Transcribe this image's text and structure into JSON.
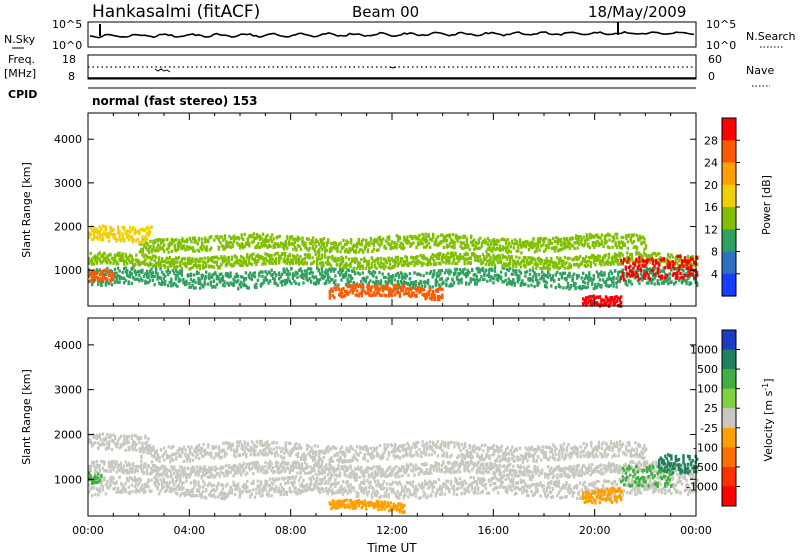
{
  "header": {
    "station": "Hankasalmi (fitACF)",
    "beam": "Beam 00",
    "date": "18/May/2009"
  },
  "noise_panel": {
    "left_label": "N.Sky",
    "right_label": "N.Search",
    "left_ticks": [
      "10^5",
      "10^0"
    ],
    "right_ticks": [
      "10^5",
      "10^0"
    ]
  },
  "freq_panel": {
    "left_label_1": "Freq.",
    "left_label_2": "[MHz]",
    "left_ticks": [
      "18",
      "8"
    ],
    "right_label": "Nave",
    "right_ticks": [
      "60",
      "0"
    ]
  },
  "cpid": {
    "label": "CPID",
    "value": "normal (fast stereo) 153"
  },
  "chart_data": [
    {
      "type": "heatmap",
      "quantity": "Power",
      "ylabel": "Slant Range [km]",
      "xlabel": "",
      "ylim": [
        180,
        4600
      ],
      "xlim": [
        0,
        24
      ],
      "yticks": [
        "4000",
        "3000",
        "2000",
        "1000"
      ],
      "colorbar_label": "Power [dB]",
      "colorbar_ticks": [
        "28",
        "24",
        "20",
        "16",
        "12",
        "8",
        "4"
      ],
      "colorbar_colors": [
        "#ff0000",
        "#ff5a00",
        "#ffa000",
        "#f0d000",
        "#80c000",
        "#30a060",
        "#3070c0",
        "#1a3cff"
      ],
      "bands": [
        {
          "x": [
            0,
            24
          ],
          "y_center": 850,
          "width": 240,
          "color": "#30a060"
        },
        {
          "x": [
            0,
            24
          ],
          "y_center": 1250,
          "width": 160,
          "color": "#80c000"
        },
        {
          "x": [
            2,
            22
          ],
          "y_center": 1650,
          "width": 200,
          "color": "#80c000"
        },
        {
          "x": [
            0,
            2.5
          ],
          "y_center": 1900,
          "width": 220,
          "color": "#f0d000"
        },
        {
          "x": [
            9.5,
            14
          ],
          "y_center": 520,
          "width": 160,
          "color": "#ff5a00"
        },
        {
          "x": [
            19.5,
            21
          ],
          "y_center": 380,
          "width": 140,
          "color": "#ff0000"
        },
        {
          "x": [
            21,
            24
          ],
          "y_center": 1050,
          "width": 320,
          "color": "#ff0000"
        },
        {
          "x": [
            0,
            1
          ],
          "y_center": 850,
          "width": 160,
          "color": "#ff5a00"
        }
      ]
    },
    {
      "type": "heatmap",
      "quantity": "Velocity",
      "ylabel": "Slant Range [km]",
      "xlabel": "Time UT",
      "ylim": [
        180,
        4600
      ],
      "xlim": [
        0,
        24
      ],
      "yticks": [
        "4000",
        "3000",
        "2000",
        "1000"
      ],
      "xticks": [
        "00:00",
        "04:00",
        "08:00",
        "12:00",
        "16:00",
        "20:00",
        "00:00"
      ],
      "colorbar_label": "Velocity [m s^-1]",
      "colorbar_ticks": [
        "1000",
        "500",
        "100",
        "25",
        "-25",
        "-100",
        "-500",
        "-1000"
      ],
      "colorbar_colors": [
        "#1a3cc0",
        "#208060",
        "#40b040",
        "#80d040",
        "#c8c8c0",
        "#ffa000",
        "#ff7000",
        "#ff3000",
        "#ff0000"
      ],
      "bands": [
        {
          "x": [
            0,
            24
          ],
          "y_center": 850,
          "width": 240,
          "color": "#c8c8c0"
        },
        {
          "x": [
            0,
            24
          ],
          "y_center": 1250,
          "width": 160,
          "color": "#c8c8c0"
        },
        {
          "x": [
            2,
            22
          ],
          "y_center": 1650,
          "width": 220,
          "color": "#c8c8c0"
        },
        {
          "x": [
            0,
            2.5
          ],
          "y_center": 1900,
          "width": 220,
          "color": "#c8c8c0"
        },
        {
          "x": [
            0,
            0.5
          ],
          "y_center": 1100,
          "width": 160,
          "color": "#40b040"
        },
        {
          "x": [
            9.5,
            12.5
          ],
          "y_center": 420,
          "width": 120,
          "color": "#ffa000"
        },
        {
          "x": [
            19.5,
            21
          ],
          "y_center": 700,
          "width": 200,
          "color": "#ffa000"
        },
        {
          "x": [
            21,
            23
          ],
          "y_center": 1050,
          "width": 280,
          "color": "#40b040"
        },
        {
          "x": [
            22.5,
            24
          ],
          "y_center": 1400,
          "width": 260,
          "color": "#208060"
        }
      ]
    }
  ]
}
